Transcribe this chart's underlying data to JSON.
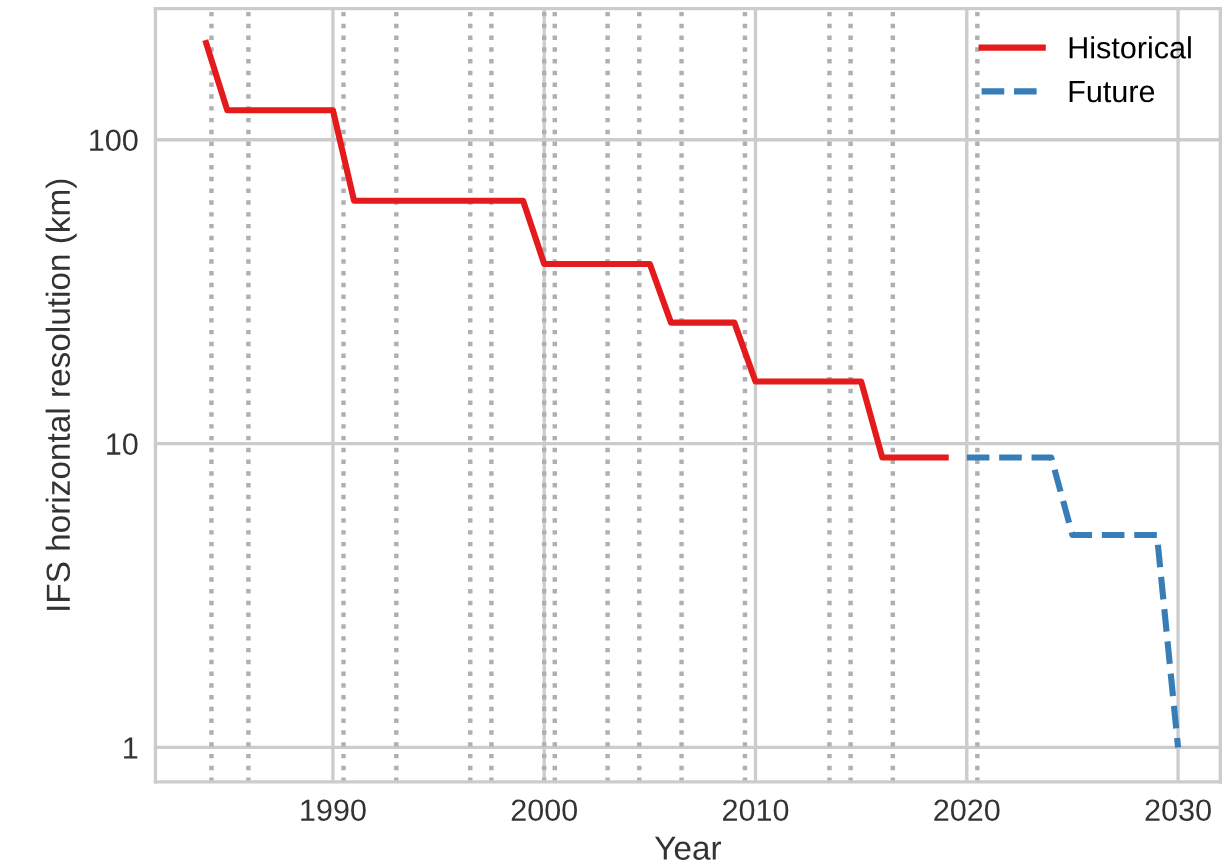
{
  "chart_data": {
    "type": "line",
    "xlabel": "Year",
    "ylabel": "IFS horizontal resolution (km)",
    "series": [
      {
        "name": "Historical",
        "color": "#e41a1c",
        "line_style": "solid",
        "x": [
          1984,
          1985,
          1990,
          1991,
          1999,
          2000,
          2005,
          2006,
          2009,
          2010,
          2015,
          2016,
          2019
        ],
        "values": [
          208,
          125,
          125,
          63,
          63,
          39,
          39,
          25,
          25,
          16,
          16,
          9,
          9
        ]
      },
      {
        "name": "Future",
        "color": "#377eb8",
        "line_style": "dashed",
        "x": [
          2020,
          2024,
          2025,
          2029,
          2030
        ],
        "values": [
          9,
          9,
          5,
          5,
          1
        ]
      }
    ],
    "log": "y",
    "xlim": [
      1981.6,
      2032
    ],
    "xticks": [
      1990,
      2000,
      2010,
      2020,
      2030
    ],
    "ylim": [
      0.77,
      270
    ],
    "yticks": [
      1,
      10,
      100
    ],
    "grid": true,
    "legend": "top right",
    "marker": "none",
    "ref_lines": [
      {
        "axis": "x",
        "value": 1984.25,
        "color": "#b0b0b0",
        "line_style": "dotted"
      },
      {
        "axis": "x",
        "value": 1986,
        "color": "#b0b0b0",
        "line_style": "dotted"
      },
      {
        "axis": "x",
        "value": 1990.5,
        "color": "#b0b0b0",
        "line_style": "dotted"
      },
      {
        "axis": "x",
        "value": 1993,
        "color": "#b0b0b0",
        "line_style": "dotted"
      },
      {
        "axis": "x",
        "value": 1996.5,
        "color": "#b0b0b0",
        "line_style": "dotted"
      },
      {
        "axis": "x",
        "value": 1997.5,
        "color": "#b0b0b0",
        "line_style": "dotted"
      },
      {
        "axis": "x",
        "value": 2000,
        "color": "#b0b0b0",
        "line_style": "dotted"
      },
      {
        "axis": "x",
        "value": 2000.5,
        "color": "#b0b0b0",
        "line_style": "dotted"
      },
      {
        "axis": "x",
        "value": 2003,
        "color": "#b0b0b0",
        "line_style": "dotted"
      },
      {
        "axis": "x",
        "value": 2004.5,
        "color": "#b0b0b0",
        "line_style": "dotted"
      },
      {
        "axis": "x",
        "value": 2006.5,
        "color": "#b0b0b0",
        "line_style": "dotted"
      },
      {
        "axis": "x",
        "value": 2009.5,
        "color": "#b0b0b0",
        "line_style": "dotted"
      },
      {
        "axis": "x",
        "value": 2013.5,
        "color": "#b0b0b0",
        "line_style": "dotted"
      },
      {
        "axis": "x",
        "value": 2014.5,
        "color": "#b0b0b0",
        "line_style": "dotted"
      },
      {
        "axis": "x",
        "value": 2016.5,
        "color": "#b0b0b0",
        "line_style": "dotted"
      },
      {
        "axis": "x",
        "value": 2020.5,
        "color": "#b0b0b0",
        "line_style": "dotted"
      }
    ]
  }
}
